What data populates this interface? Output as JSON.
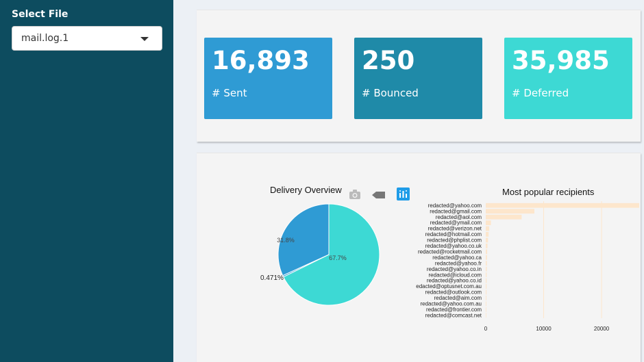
{
  "sidebar": {
    "label": "Select File",
    "file_select": {
      "value": "mail.log.1"
    }
  },
  "value_boxes": [
    {
      "value": "16,893",
      "label": "# Sent",
      "color": "#2f9bd4"
    },
    {
      "value": "250",
      "label": "# Bounced",
      "color": "#1f8aa8"
    },
    {
      "value": "35,985",
      "label": "# Deferred",
      "color": "#3dd9d4"
    }
  ],
  "pie_chart": {
    "title": "Delivery Overview",
    "toolbar": [
      "camera-icon",
      "tag-icon",
      "plotly-logo-icon"
    ]
  },
  "bar_chart": {
    "title": "Most popular recipients"
  },
  "chart_data": [
    {
      "type": "pie",
      "title": "Delivery Overview",
      "slices": [
        {
          "label": "67.7%",
          "value": 67.7,
          "color": "#3dd9d4"
        },
        {
          "label": "0.471%",
          "value": 0.471,
          "color": "#2f9bd4"
        },
        {
          "label": "31.8%",
          "value": 31.8,
          "color": "#2f9bd4"
        }
      ]
    },
    {
      "type": "bar",
      "orientation": "horizontal",
      "title": "Most popular recipients",
      "categories": [
        "redacted@yahoo.com",
        "redacted@gmail.com",
        "redacted@aol.com",
        "redacted@ymail.com",
        "redacted@verizon.net",
        "redacted@hotmail.com",
        "redacted@phplist.com",
        "redacted@yahoo.co.uk",
        "redacted@rocketmail.com",
        "redacted@yahoo.ca",
        "redacted@yahoo.fr",
        "redacted@yahoo.co.in",
        "redacted@icloud.com",
        "redacted@yahoo.co.id",
        "redacted@optusnet.com.au",
        "redacted@outlook.com",
        "redacted@aim.com",
        "redacted@yahoo.com.au",
        "redacted@frontier.com",
        "redacted@comcast.net"
      ],
      "values": [
        26500,
        8400,
        6200,
        900,
        600,
        500,
        400,
        300,
        250,
        220,
        200,
        180,
        160,
        150,
        140,
        130,
        120,
        110,
        100,
        90
      ],
      "xlim": [
        0,
        26500
      ],
      "xticks": [
        "0",
        "10000",
        "20000"
      ],
      "xtick_values": [
        0,
        10000,
        20000
      ],
      "bar_color": "#fde6cc"
    }
  ]
}
